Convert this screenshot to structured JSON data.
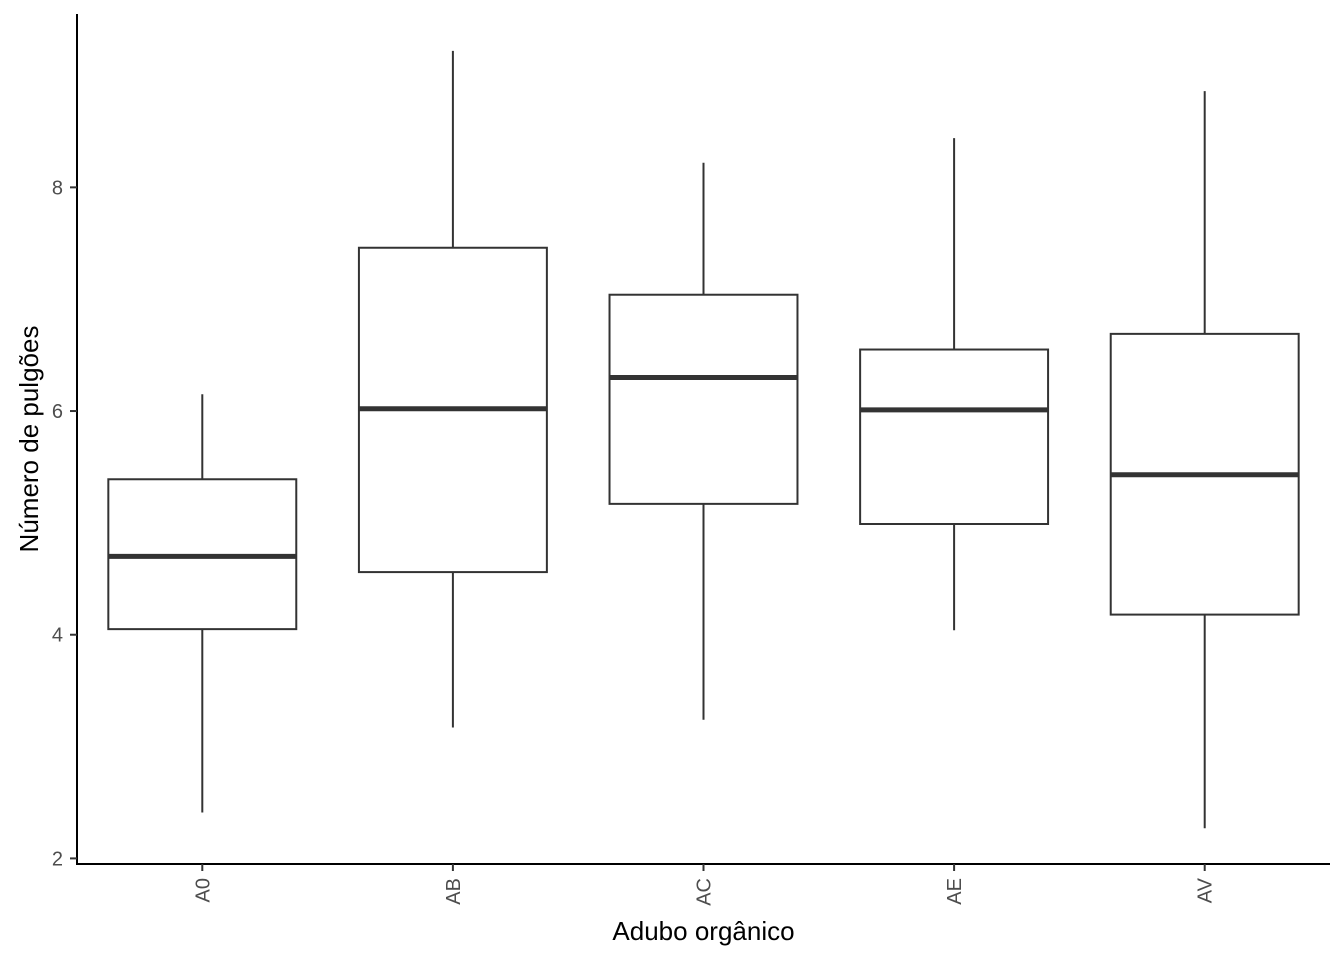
{
  "chart_data": {
    "type": "boxplot",
    "xlabel": "Adubo orgânico",
    "ylabel": "Número de pulgões",
    "ylim": [
      1.95,
      9.55
    ],
    "yticks": [
      2,
      4,
      6,
      8
    ],
    "grid": false,
    "legend": "none",
    "categories": [
      "A0",
      "AB",
      "AC",
      "AE",
      "AV"
    ],
    "boxes": [
      {
        "category": "A0",
        "min": 2.41,
        "q1": 4.05,
        "median": 4.7,
        "q3": 5.39,
        "max": 6.15
      },
      {
        "category": "AB",
        "min": 3.17,
        "q1": 4.56,
        "median": 6.02,
        "q3": 7.46,
        "max": 9.22
      },
      {
        "category": "AC",
        "min": 3.24,
        "q1": 5.17,
        "median": 6.3,
        "q3": 7.04,
        "max": 8.22
      },
      {
        "category": "AE",
        "min": 4.04,
        "q1": 4.99,
        "median": 6.01,
        "q3": 6.55,
        "max": 8.44
      },
      {
        "category": "AV",
        "min": 2.27,
        "q1": 4.18,
        "median": 5.43,
        "q3": 6.69,
        "max": 8.86
      }
    ],
    "colors": {
      "box_stroke": "#333333",
      "box_fill": "#ffffff",
      "axis": "#000000",
      "tick_text": "#4d4d4d"
    }
  }
}
